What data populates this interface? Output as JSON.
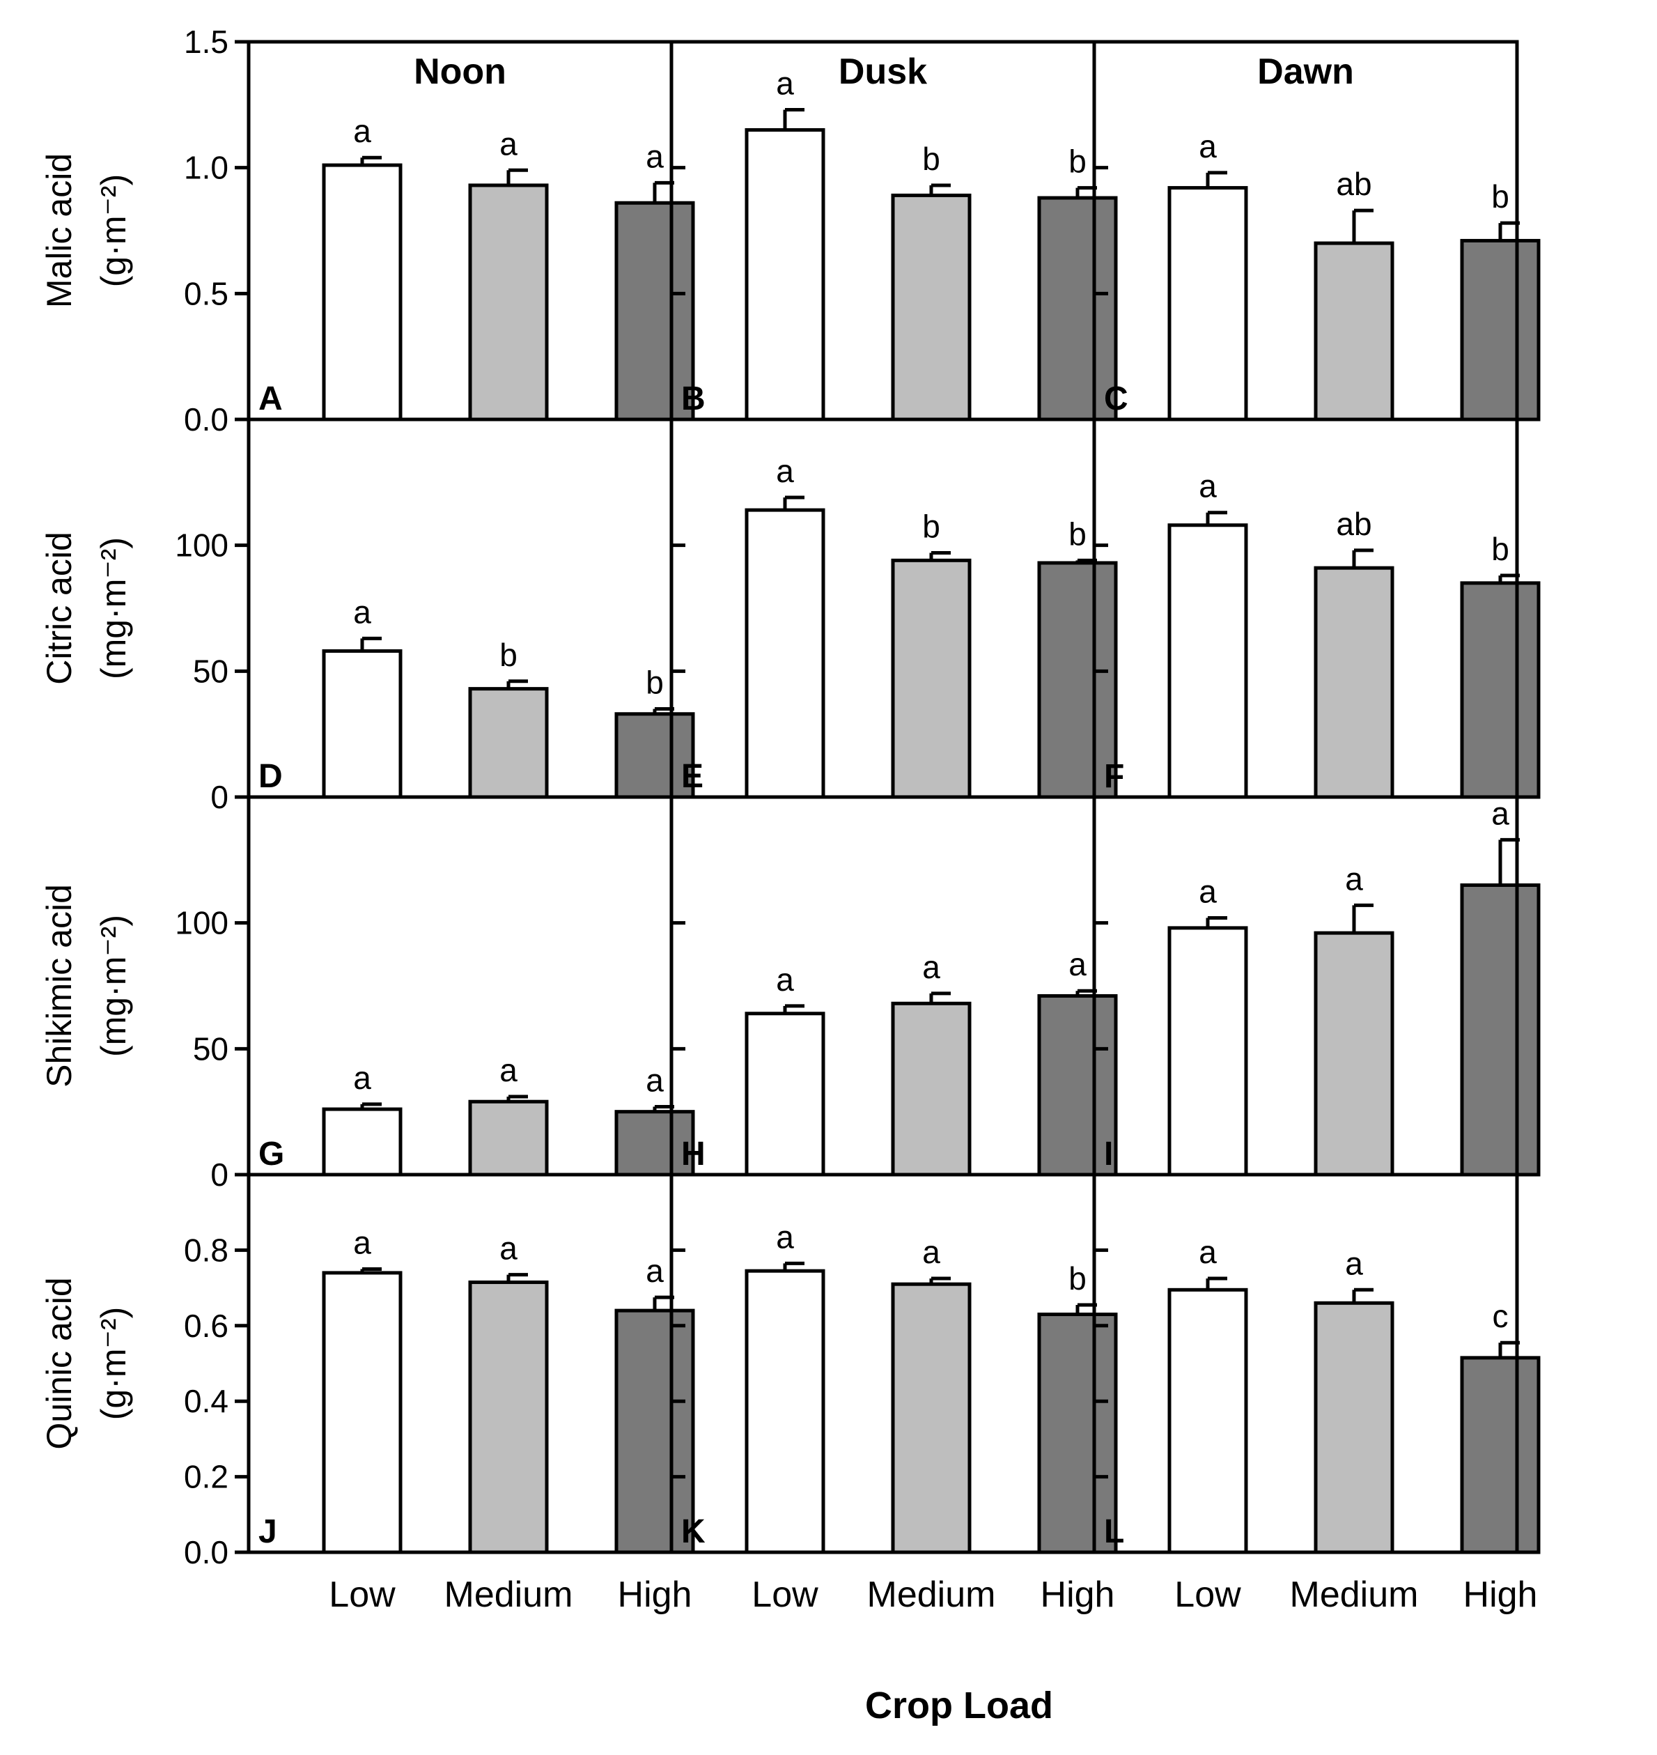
{
  "chart_data": {
    "type": "bar",
    "xlabel": "Crop Load",
    "categories": [
      "Low",
      "Medium",
      "High"
    ],
    "columns": [
      "Noon",
      "Dusk",
      "Dawn"
    ],
    "colors": {
      "Low": "#ffffff",
      "Medium": "#bebebe",
      "High": "#7a7a7a"
    },
    "rows": [
      {
        "ylabel_line1": "Malic acid",
        "ylabel_unit": "(g·m⁻²)",
        "ylim": [
          0,
          1.5
        ],
        "ticks": [
          "0.0",
          "0.5",
          "1.0",
          "1.5"
        ],
        "tick_values": [
          0,
          0.5,
          1.0,
          1.5
        ],
        "panels": [
          {
            "letter": "A",
            "values": [
              1.01,
              0.93,
              0.86
            ],
            "errors": [
              0.03,
              0.06,
              0.08
            ],
            "sig": [
              "a",
              "a",
              "a"
            ]
          },
          {
            "letter": "B",
            "values": [
              1.15,
              0.89,
              0.88
            ],
            "errors": [
              0.08,
              0.04,
              0.04
            ],
            "sig": [
              "a",
              "b",
              "b"
            ]
          },
          {
            "letter": "C",
            "values": [
              0.92,
              0.7,
              0.71
            ],
            "errors": [
              0.06,
              0.13,
              0.07
            ],
            "sig": [
              "a",
              "ab",
              "b"
            ]
          }
        ]
      },
      {
        "ylabel_line1": "Citric acid",
        "ylabel_unit": "(mg·m⁻²)",
        "ylim": [
          0,
          150
        ],
        "ticks": [
          "0",
          "50",
          "100"
        ],
        "tick_values": [
          0,
          50,
          100
        ],
        "panels": [
          {
            "letter": "D",
            "values": [
              58,
              43,
              33
            ],
            "errors": [
              5,
              3,
              2
            ],
            "sig": [
              "a",
              "b",
              "b"
            ]
          },
          {
            "letter": "E",
            "values": [
              114,
              94,
              93
            ],
            "errors": [
              5,
              3,
              1
            ],
            "sig": [
              "a",
              "b",
              "b"
            ]
          },
          {
            "letter": "F",
            "values": [
              108,
              91,
              85
            ],
            "errors": [
              5,
              7,
              3
            ],
            "sig": [
              "a",
              "ab",
              "b"
            ]
          }
        ]
      },
      {
        "ylabel_line1": "Shikimic acid",
        "ylabel_unit": "(mg·m⁻²)",
        "ylim": [
          0,
          150
        ],
        "ticks": [
          "0",
          "50",
          "100"
        ],
        "tick_values": [
          0,
          50,
          100
        ],
        "panels": [
          {
            "letter": "G",
            "values": [
              26,
              29,
              25
            ],
            "errors": [
              2,
              2,
              2
            ],
            "sig": [
              "a",
              "a",
              "a"
            ]
          },
          {
            "letter": "H",
            "values": [
              64,
              68,
              71
            ],
            "errors": [
              3,
              4,
              2
            ],
            "sig": [
              "a",
              "a",
              "a"
            ]
          },
          {
            "letter": "I",
            "values": [
              98,
              96,
              115
            ],
            "errors": [
              4,
              11,
              18
            ],
            "sig": [
              "a",
              "a",
              "a"
            ]
          }
        ]
      },
      {
        "ylabel_line1": "Quinic acid",
        "ylabel_unit": "(g·m⁻²)",
        "ylim": [
          0,
          1.0
        ],
        "ticks": [
          "0.0",
          "0.2",
          "0.4",
          "0.6",
          "0.8"
        ],
        "tick_values": [
          0,
          0.2,
          0.4,
          0.6,
          0.8
        ],
        "panels": [
          {
            "letter": "J",
            "values": [
              0.74,
              0.715,
              0.64
            ],
            "errors": [
              0.01,
              0.02,
              0.035
            ],
            "sig": [
              "a",
              "a",
              "a"
            ]
          },
          {
            "letter": "K",
            "values": [
              0.745,
              0.71,
              0.63
            ],
            "errors": [
              0.02,
              0.015,
              0.025
            ],
            "sig": [
              "a",
              "a",
              "b"
            ]
          },
          {
            "letter": "L",
            "values": [
              0.695,
              0.66,
              0.515
            ],
            "errors": [
              0.03,
              0.035,
              0.04
            ],
            "sig": [
              "a",
              "a",
              "c"
            ]
          }
        ]
      }
    ]
  }
}
